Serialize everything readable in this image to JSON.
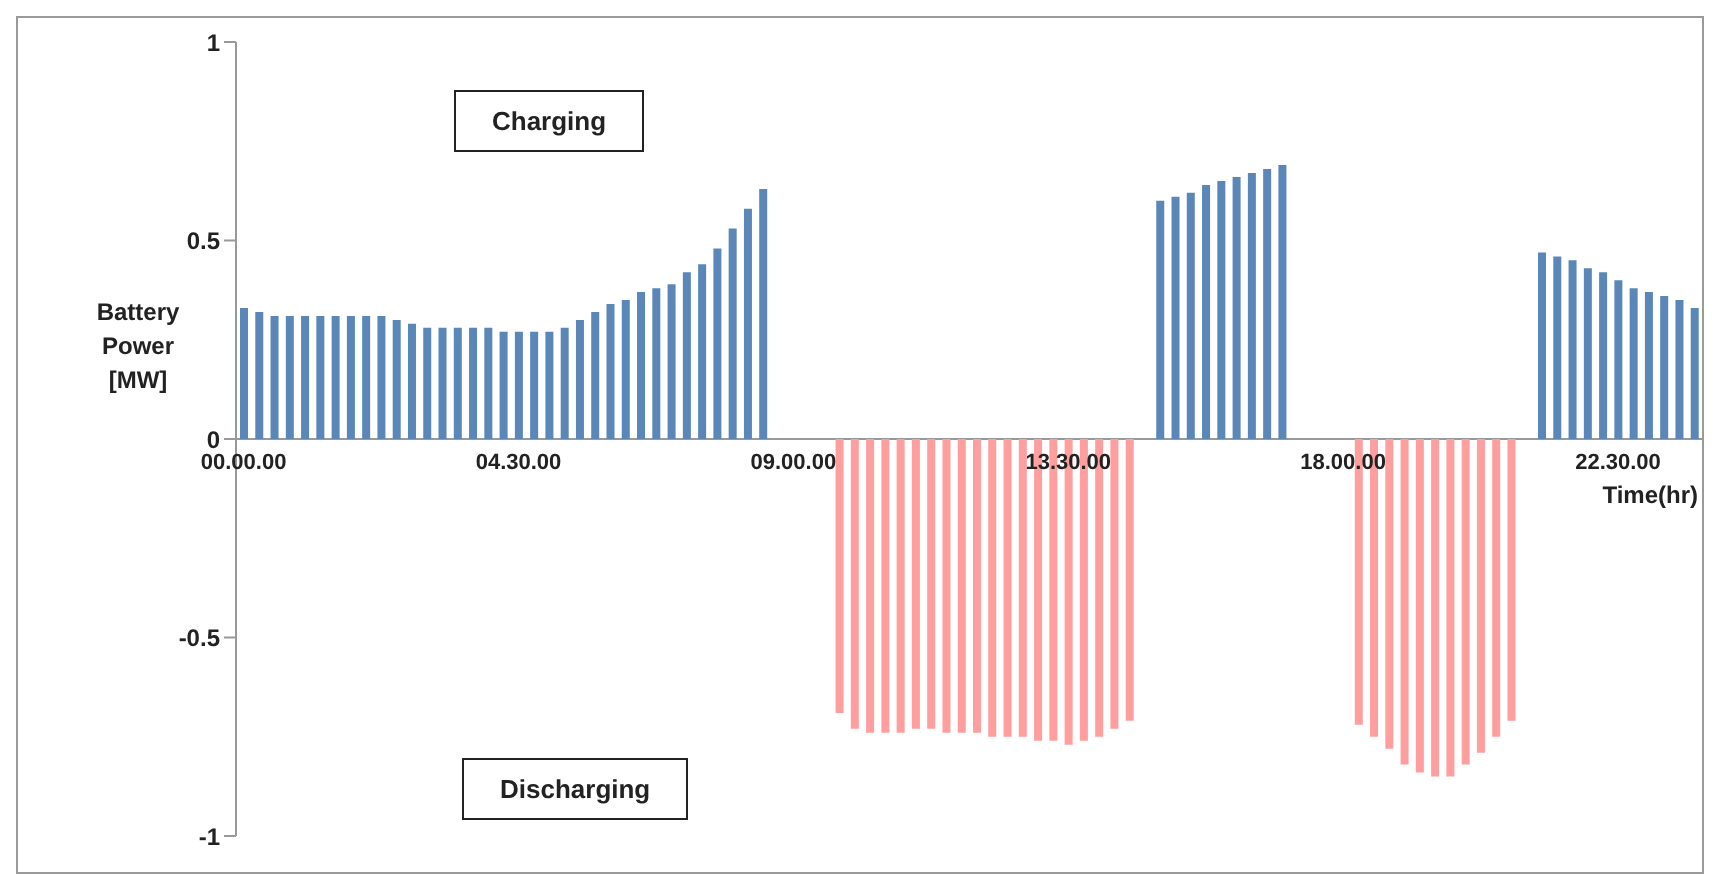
{
  "chart_data": {
    "type": "bar",
    "xlabel": "Time(hr)",
    "ylabel": "Battery Power [MW]",
    "annotations": [
      "Charging",
      "Discharging"
    ],
    "categories": [
      "00.00.00",
      null,
      null,
      null,
      null,
      null,
      null,
      null,
      null,
      null,
      null,
      null,
      null,
      null,
      null,
      null,
      null,
      null,
      "04.30.00",
      null,
      null,
      null,
      null,
      null,
      null,
      null,
      null,
      null,
      null,
      null,
      null,
      null,
      null,
      null,
      null,
      null,
      "09.00.00",
      null,
      null,
      null,
      null,
      null,
      null,
      null,
      null,
      null,
      null,
      null,
      null,
      null,
      null,
      null,
      null,
      null,
      "13.30.00",
      null,
      null,
      null,
      null,
      null,
      null,
      null,
      null,
      null,
      null,
      null,
      null,
      null,
      null,
      null,
      null,
      null,
      "18.00.00",
      null,
      null,
      null,
      null,
      null,
      null,
      null,
      null,
      null,
      null,
      null,
      null,
      null,
      null,
      null,
      null,
      null,
      "22.30.00",
      null,
      null,
      null,
      null,
      null
    ],
    "stacked": true,
    "series": [
      {
        "color": "#5a86b8",
        "values": [
          0.33,
          0.32,
          0.31,
          0.31,
          0.31,
          0.31,
          0.31,
          0.31,
          0.31,
          0.31,
          0.3,
          0.29,
          0.28,
          0.28,
          0.28,
          0.28,
          0.28,
          0.27,
          0.27,
          0.27,
          0.27,
          0.28,
          0.3,
          0.32,
          0.34,
          0.35,
          0.37,
          0.38,
          0.39,
          0.42,
          0.44,
          0.48,
          0.53,
          0.58,
          0.63,
          null,
          null,
          null,
          null,
          null,
          null,
          null,
          null,
          null,
          null,
          null,
          null,
          null,
          null,
          null,
          null,
          null,
          null,
          null,
          null,
          null,
          null,
          null,
          null,
          null,
          0.6,
          0.61,
          0.62,
          0.64,
          0.65,
          0.66,
          0.67,
          0.68,
          0.69,
          null,
          null,
          null,
          null,
          null,
          null,
          null,
          null,
          null,
          null,
          null,
          null,
          null,
          null,
          null,
          null,
          0.47,
          0.46,
          0.45,
          0.43,
          0.42,
          0.4,
          0.38,
          0.37,
          0.36,
          0.35,
          0.33
        ]
      },
      {
        "color": "#ff9e9e",
        "values": [
          null,
          null,
          null,
          null,
          null,
          null,
          null,
          null,
          null,
          null,
          null,
          null,
          null,
          null,
          null,
          null,
          null,
          null,
          null,
          null,
          null,
          null,
          null,
          null,
          null,
          null,
          null,
          null,
          null,
          null,
          null,
          null,
          null,
          null,
          null,
          null,
          null,
          null,
          null,
          -0.69,
          -0.73,
          -0.74,
          -0.74,
          -0.74,
          -0.73,
          -0.73,
          -0.74,
          -0.74,
          -0.74,
          -0.75,
          -0.75,
          -0.75,
          -0.76,
          -0.76,
          -0.77,
          -0.76,
          -0.75,
          -0.73,
          -0.71,
          null,
          null,
          null,
          null,
          null,
          null,
          null,
          null,
          null,
          null,
          null,
          null,
          null,
          null,
          -0.72,
          -0.75,
          -0.78,
          -0.82,
          -0.84,
          -0.85,
          -0.85,
          -0.82,
          -0.79,
          -0.75,
          -0.71,
          null,
          null,
          null,
          null,
          null,
          null,
          null,
          null,
          null,
          null,
          null,
          null
        ]
      }
    ],
    "ylim": [
      -1,
      1
    ],
    "yticks": [
      -1,
      -0.5,
      0,
      0.5,
      1
    ]
  }
}
